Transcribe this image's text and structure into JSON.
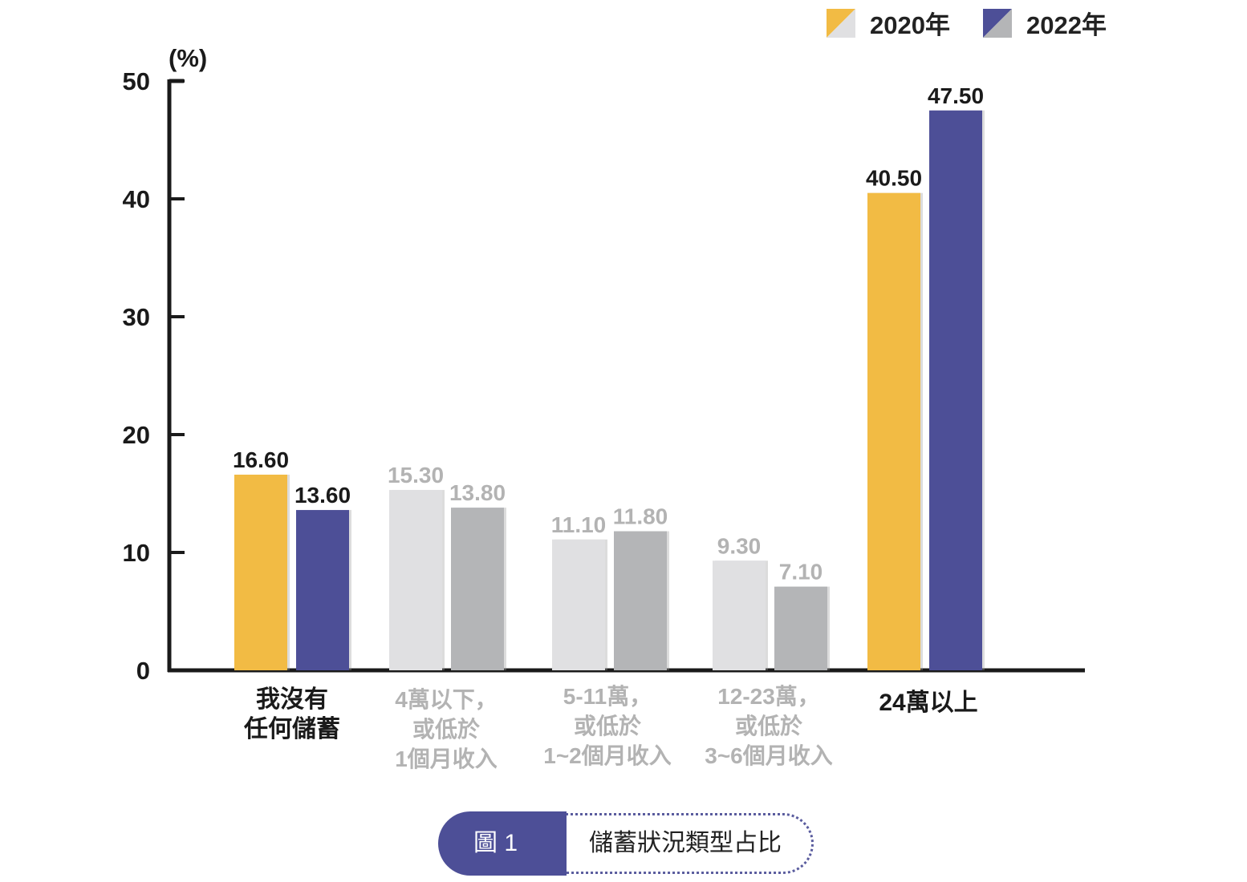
{
  "legend": [
    {
      "label": "2020年",
      "colors": [
        "#f2bb44",
        "#e0e0e2"
      ]
    },
    {
      "label": "2022年",
      "colors": [
        "#4d4f97",
        "#b4b5b7"
      ]
    }
  ],
  "caption": {
    "badge": "圖 1",
    "title": "儲蓄狀況類型占比"
  },
  "chart_data": {
    "type": "bar",
    "title": "儲蓄狀況類型占比",
    "ylabel": "(%)",
    "ylim": [
      0,
      50
    ],
    "yticks": [
      0,
      10,
      20,
      30,
      40,
      50
    ],
    "grid": false,
    "legend_position": "top-right",
    "categories": [
      "我沒有\n任何儲蓄",
      "4萬以下，\n或低於\n1個月收入",
      "5-11萬，\n或低於\n1~2個月收入",
      "12-23萬，\n或低於\n3~6個月收入",
      "24萬以上"
    ],
    "category_emphasis": [
      true,
      false,
      false,
      false,
      true
    ],
    "series": [
      {
        "name": "2020年",
        "values": [
          16.6,
          15.3,
          11.1,
          9.3,
          40.5
        ],
        "labels": [
          "16.60",
          "15.30",
          "11.10",
          "9.30",
          "40.50"
        ],
        "color": "#f2bb44",
        "muted_color": "#e0e0e2"
      },
      {
        "name": "2022年",
        "values": [
          13.6,
          13.8,
          11.8,
          7.1,
          47.5
        ],
        "labels": [
          "13.60",
          "13.80",
          "11.80",
          "7.10",
          "47.50"
        ],
        "color": "#4d4f97",
        "muted_color": "#b4b5b7"
      }
    ],
    "text_color": "#1a1a1a",
    "muted_text_color": "#b3b3b3"
  }
}
